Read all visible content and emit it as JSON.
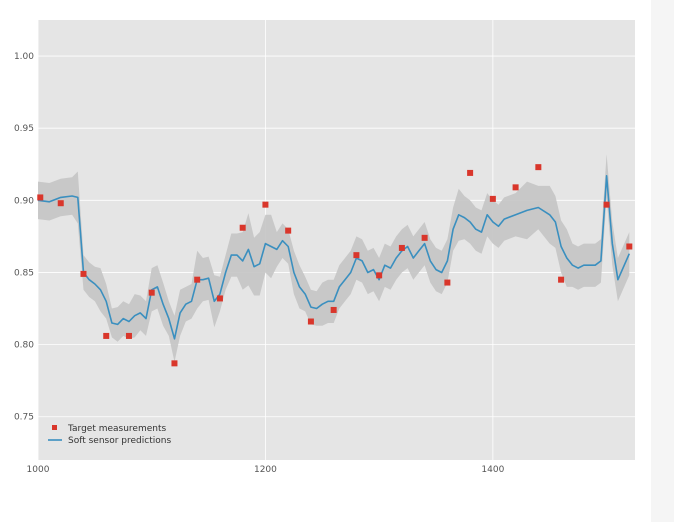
{
  "chart_data": {
    "type": "line",
    "title": "",
    "xlabel": "",
    "ylabel": "",
    "xlim": [
      1000,
      1525
    ],
    "ylim": [
      0.72,
      1.025
    ],
    "grid": true,
    "background": "#e5e5e5",
    "x_ticks": [
      {
        "value": 1000,
        "label": "1000"
      },
      {
        "value": 1200,
        "label": "1200"
      },
      {
        "value": 1400,
        "label": "1400"
      }
    ],
    "y_ticks": [
      {
        "value": 0.75,
        "label": "0.75"
      },
      {
        "value": 0.8,
        "label": "0.80"
      },
      {
        "value": 0.85,
        "label": "0.85"
      },
      {
        "value": 0.9,
        "label": "0.90"
      },
      {
        "value": 0.95,
        "label": "0.95"
      },
      {
        "value": 1.0,
        "label": "1.00"
      }
    ],
    "legend": {
      "position": "lower-left",
      "entries": [
        {
          "label": "Target measurements",
          "marker": "square",
          "color": "#d9362b"
        },
        {
          "label": "Soft sensor predictions",
          "marker": "line",
          "color": "#3a8fbf"
        }
      ]
    },
    "series": [
      {
        "name": "Soft sensor predictions",
        "kind": "line",
        "color": "#3a8fbf",
        "band_color": "#c4c4c4",
        "band_halfwidth": [
          0.013,
          0.013,
          0.013,
          0.013,
          0.018,
          0.012,
          0.012,
          0.012,
          0.015,
          0.012,
          0.01,
          0.012,
          0.012,
          0.012,
          0.015,
          0.012,
          0.012,
          0.015,
          0.015,
          0.015,
          0.012,
          0.016,
          0.016,
          0.012,
          0.012,
          0.02,
          0.015,
          0.015,
          0.018,
          0.012,
          0.012,
          0.015,
          0.015,
          0.02,
          0.025,
          0.02,
          0.022,
          0.02,
          0.022,
          0.012,
          0.012,
          0.012,
          0.015,
          0.015,
          0.012,
          0.012,
          0.012,
          0.015,
          0.015,
          0.015,
          0.015,
          0.015,
          0.015,
          0.015,
          0.015,
          0.015,
          0.015,
          0.015,
          0.015,
          0.015,
          0.015,
          0.015,
          0.015,
          0.015,
          0.015,
          0.015,
          0.015,
          0.015,
          0.015,
          0.015,
          0.015,
          0.018,
          0.015,
          0.015,
          0.015,
          0.015,
          0.015,
          0.015,
          0.015,
          0.015,
          0.015,
          0.02,
          0.015,
          0.02,
          0.018,
          0.018,
          0.02,
          0.015,
          0.015,
          0.015,
          0.015,
          0.015,
          0.015,
          0.015,
          0.015,
          0.015
        ],
        "x": [
          1000,
          1010,
          1020,
          1030,
          1035,
          1040,
          1045,
          1050,
          1055,
          1060,
          1065,
          1070,
          1075,
          1080,
          1085,
          1090,
          1095,
          1100,
          1105,
          1110,
          1115,
          1120,
          1125,
          1130,
          1135,
          1140,
          1145,
          1150,
          1155,
          1160,
          1165,
          1170,
          1175,
          1180,
          1185,
          1190,
          1195,
          1200,
          1205,
          1210,
          1215,
          1220,
          1225,
          1230,
          1235,
          1240,
          1245,
          1250,
          1255,
          1260,
          1265,
          1270,
          1275,
          1280,
          1285,
          1290,
          1295,
          1300,
          1305,
          1310,
          1315,
          1320,
          1325,
          1330,
          1335,
          1340,
          1345,
          1350,
          1355,
          1360,
          1365,
          1370,
          1375,
          1380,
          1385,
          1390,
          1395,
          1400,
          1405,
          1410,
          1420,
          1430,
          1440,
          1450,
          1455,
          1460,
          1465,
          1470,
          1475,
          1480,
          1490,
          1495,
          1500,
          1505,
          1510,
          1520
        ],
        "y": [
          0.9,
          0.899,
          0.902,
          0.903,
          0.902,
          0.85,
          0.845,
          0.842,
          0.838,
          0.83,
          0.815,
          0.814,
          0.818,
          0.816,
          0.82,
          0.822,
          0.818,
          0.838,
          0.84,
          0.828,
          0.818,
          0.804,
          0.822,
          0.828,
          0.83,
          0.845,
          0.845,
          0.846,
          0.83,
          0.835,
          0.85,
          0.862,
          0.862,
          0.858,
          0.866,
          0.854,
          0.856,
          0.87,
          0.868,
          0.866,
          0.872,
          0.868,
          0.85,
          0.84,
          0.835,
          0.826,
          0.825,
          0.828,
          0.83,
          0.83,
          0.84,
          0.845,
          0.85,
          0.86,
          0.858,
          0.85,
          0.852,
          0.845,
          0.855,
          0.853,
          0.86,
          0.865,
          0.868,
          0.86,
          0.865,
          0.87,
          0.858,
          0.852,
          0.85,
          0.858,
          0.88,
          0.89,
          0.888,
          0.885,
          0.88,
          0.878,
          0.89,
          0.885,
          0.882,
          0.887,
          0.89,
          0.893,
          0.895,
          0.89,
          0.885,
          0.868,
          0.86,
          0.855,
          0.853,
          0.855,
          0.855,
          0.858,
          0.917,
          0.87,
          0.845,
          0.863
        ]
      },
      {
        "name": "Target measurements",
        "kind": "scatter",
        "color": "#d9362b",
        "x": [
          1002,
          1020,
          1040,
          1060,
          1080,
          1100,
          1120,
          1140,
          1160,
          1180,
          1200,
          1220,
          1240,
          1260,
          1280,
          1300,
          1320,
          1340,
          1360,
          1380,
          1400,
          1420,
          1440,
          1460,
          1500,
          1520
        ],
        "y": [
          0.902,
          0.898,
          0.849,
          0.806,
          0.806,
          0.836,
          0.787,
          0.845,
          0.832,
          0.881,
          0.897,
          0.879,
          0.816,
          0.824,
          0.862,
          0.848,
          0.867,
          0.874,
          0.843,
          0.919,
          0.901,
          0.909,
          0.923,
          0.845,
          0.897,
          0.868
        ]
      }
    ]
  }
}
